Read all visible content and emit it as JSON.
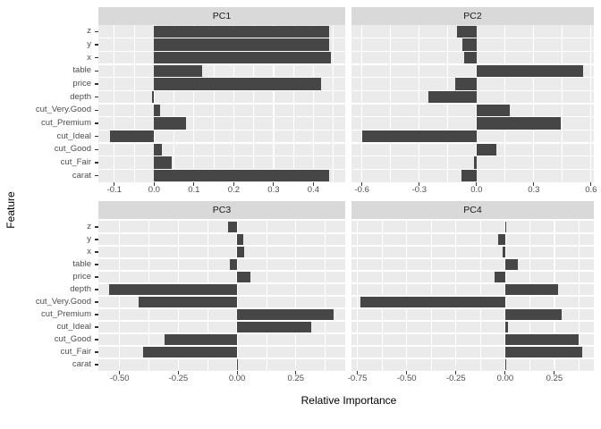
{
  "figure_title": "",
  "chart_data": {
    "type": "bar",
    "orientation": "horizontal",
    "title": "",
    "xlabel": "Relative Importance",
    "ylabel": "Feature",
    "legend": "none",
    "grid": true,
    "categories_top_to_bottom": [
      "z",
      "y",
      "x",
      "table",
      "price",
      "depth",
      "cut_Very.Good",
      "cut_Premium",
      "cut_Ideal",
      "cut_Good",
      "cut_Fair",
      "carat"
    ],
    "facets": [
      {
        "label": "PC1",
        "values": [
          0.44,
          0.44,
          0.445,
          0.12,
          0.42,
          -0.005,
          0.015,
          0.08,
          -0.11,
          0.02,
          0.045,
          0.44
        ],
        "xlim": [
          -0.14,
          0.48
        ],
        "ticks": [
          -0.1,
          0.0,
          0.1,
          0.2,
          0.3,
          0.4
        ],
        "tick_labels": [
          "-0.1",
          "0.0",
          "0.1",
          "0.2",
          "0.3",
          "0.4"
        ]
      },
      {
        "label": "PC2",
        "values": [
          -0.1,
          -0.075,
          -0.065,
          0.56,
          -0.11,
          -0.25,
          0.175,
          0.44,
          -0.6,
          0.105,
          -0.015,
          -0.08
        ],
        "xlim": [
          -0.655,
          0.615
        ],
        "ticks": [
          -0.6,
          -0.3,
          0.0,
          0.3,
          0.6
        ],
        "tick_labels": [
          "-0.6",
          "-0.3",
          "0.0",
          "0.3",
          "0.6"
        ]
      },
      {
        "label": "PC3",
        "values": [
          -0.038,
          0.028,
          0.03,
          -0.03,
          0.057,
          -0.543,
          -0.42,
          0.41,
          0.315,
          -0.31,
          -0.4,
          0.005
        ],
        "xlim": [
          -0.59,
          0.46
        ],
        "ticks": [
          -0.5,
          -0.25,
          0.0,
          0.25
        ],
        "tick_labels": [
          "-0.50",
          "-0.25",
          "0.00",
          "0.25"
        ]
      },
      {
        "label": "PC4",
        "values": [
          0.005,
          -0.035,
          -0.015,
          0.065,
          -0.055,
          0.27,
          -0.735,
          0.285,
          0.013,
          0.375,
          0.39,
          0.004
        ],
        "xlim": [
          -0.78,
          0.45
        ],
        "ticks": [
          -0.75,
          -0.5,
          -0.25,
          0.0,
          0.25
        ],
        "tick_labels": [
          "-0.75",
          "-0.50",
          "-0.25",
          "0.00",
          "0.25"
        ]
      }
    ]
  },
  "style": {
    "bar_color": "#464646",
    "panel_bg": "#EBEBEB",
    "strip_bg": "#D9D9D9",
    "grid_color": "#ffffff",
    "tick_text_color": "#4d4d4d",
    "strip_text_color": "#1a1a1a"
  }
}
